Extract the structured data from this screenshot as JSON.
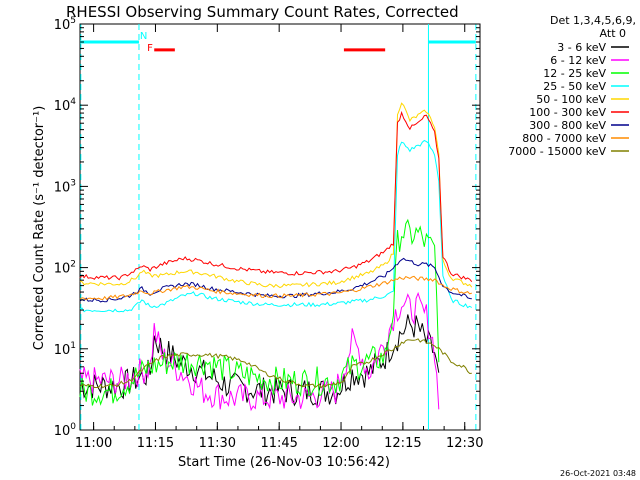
{
  "chart_data": {
    "type": "line",
    "title": "RHESSI Observing Summary Count Rates, Corrected",
    "xlabel": "Start Time (26-Nov-03 10:56:42)",
    "ylabel": "Corrected Count Rate (s⁻¹ detector⁻¹)",
    "footer": "26-Oct-2021 03:48",
    "x_unit": "minutes after 10:56:42",
    "xlim": [
      0,
      97
    ],
    "ylim": [
      1,
      100000
    ],
    "yscale": "log",
    "x_ticks": [
      {
        "x": 3.3,
        "label": "11:00"
      },
      {
        "x": 18.3,
        "label": "11:15"
      },
      {
        "x": 33.3,
        "label": "11:30"
      },
      {
        "x": 48.3,
        "label": "11:45"
      },
      {
        "x": 63.3,
        "label": "12:00"
      },
      {
        "x": 78.3,
        "label": "12:15"
      },
      {
        "x": 93.3,
        "label": "12:30"
      }
    ],
    "y_ticks": [
      {
        "v": 1,
        "base": "10",
        "exp": "0"
      },
      {
        "v": 10,
        "base": "10",
        "exp": "1"
      },
      {
        "v": 100,
        "base": "10",
        "exp": "2"
      },
      {
        "v": 1000,
        "base": "10",
        "exp": "3"
      },
      {
        "v": 10000,
        "base": "10",
        "exp": "4"
      },
      {
        "v": 100000,
        "base": "10",
        "exp": "5"
      }
    ],
    "legend_header": [
      "Det 1,3,4,5,6,9,",
      "Att 0"
    ],
    "series": [
      {
        "name": "3 - 6 keV",
        "color": "#000000",
        "points": [
          [
            0,
            3.5
          ],
          [
            10,
            3.5
          ],
          [
            17,
            5
          ],
          [
            18,
            14
          ],
          [
            20,
            10
          ],
          [
            24,
            7
          ],
          [
            30,
            5
          ],
          [
            36,
            3.5
          ],
          [
            45,
            3
          ],
          [
            55,
            3
          ],
          [
            62,
            3
          ],
          [
            66,
            5
          ],
          [
            70,
            5
          ],
          [
            74,
            8
          ],
          [
            76,
            12
          ],
          [
            78,
            16
          ],
          [
            80,
            20
          ],
          [
            82,
            18
          ],
          [
            84,
            12
          ],
          [
            86,
            9
          ],
          [
            87,
            4
          ]
        ]
      },
      {
        "name": "6 - 12 keV",
        "color": "#ff00ff",
        "points": [
          [
            0,
            4
          ],
          [
            10,
            4
          ],
          [
            17,
            6
          ],
          [
            18,
            17
          ],
          [
            20,
            8
          ],
          [
            25,
            5
          ],
          [
            30,
            3
          ],
          [
            36,
            2.5
          ],
          [
            45,
            2.5
          ],
          [
            55,
            2.5
          ],
          [
            62,
            3
          ],
          [
            66,
            12
          ],
          [
            68,
            9
          ],
          [
            70,
            5
          ],
          [
            72,
            8
          ],
          [
            74,
            12
          ],
          [
            76,
            25
          ],
          [
            78,
            38
          ],
          [
            80,
            30
          ],
          [
            82,
            32
          ],
          [
            84,
            25
          ],
          [
            86,
            10
          ],
          [
            87,
            2
          ]
        ]
      },
      {
        "name": "12 - 25 keV",
        "color": "#00ff00",
        "points": [
          [
            0,
            3
          ],
          [
            8,
            3
          ],
          [
            12,
            4
          ],
          [
            17,
            6
          ],
          [
            22,
            7
          ],
          [
            30,
            7
          ],
          [
            38,
            5
          ],
          [
            48,
            4
          ],
          [
            56,
            4
          ],
          [
            62,
            4
          ],
          [
            66,
            6
          ],
          [
            70,
            7
          ],
          [
            74,
            8
          ],
          [
            76,
            30
          ],
          [
            77,
            200
          ],
          [
            78,
            280
          ],
          [
            80,
            250
          ],
          [
            82,
            260
          ],
          [
            84,
            200
          ],
          [
            86,
            160
          ],
          [
            87,
            10
          ]
        ]
      },
      {
        "name": "25 - 50 keV",
        "color": "#00ffff",
        "points": [
          [
            0,
            30
          ],
          [
            6,
            30
          ],
          [
            10,
            30
          ],
          [
            12,
            30
          ],
          [
            14,
            35
          ],
          [
            15,
            40
          ],
          [
            17,
            33
          ],
          [
            20,
            35
          ],
          [
            25,
            45
          ],
          [
            28,
            48
          ],
          [
            32,
            42
          ],
          [
            38,
            38
          ],
          [
            45,
            35
          ],
          [
            52,
            35
          ],
          [
            58,
            35
          ],
          [
            62,
            36
          ],
          [
            66,
            38
          ],
          [
            70,
            40
          ],
          [
            74,
            45
          ],
          [
            76,
            50
          ],
          [
            77,
            2500
          ],
          [
            78,
            3500
          ],
          [
            80,
            2800
          ],
          [
            82,
            3200
          ],
          [
            84,
            3600
          ],
          [
            86,
            2500
          ],
          [
            87,
            1200
          ],
          [
            88,
            80
          ],
          [
            90,
            40
          ],
          [
            93,
            35
          ],
          [
            95,
            33
          ]
        ]
      },
      {
        "name": "50 - 100 keV",
        "color": "#ffd700",
        "points": [
          [
            0,
            65
          ],
          [
            6,
            63
          ],
          [
            10,
            63
          ],
          [
            12,
            68
          ],
          [
            14,
            78
          ],
          [
            15,
            90
          ],
          [
            17,
            80
          ],
          [
            20,
            80
          ],
          [
            25,
            90
          ],
          [
            28,
            88
          ],
          [
            32,
            80
          ],
          [
            38,
            68
          ],
          [
            45,
            60
          ],
          [
            52,
            60
          ],
          [
            58,
            63
          ],
          [
            62,
            65
          ],
          [
            66,
            75
          ],
          [
            70,
            85
          ],
          [
            74,
            110
          ],
          [
            76,
            150
          ],
          [
            77,
            8000
          ],
          [
            78,
            11000
          ],
          [
            80,
            6500
          ],
          [
            82,
            7500
          ],
          [
            84,
            8500
          ],
          [
            86,
            5500
          ],
          [
            87,
            2500
          ],
          [
            88,
            120
          ],
          [
            90,
            75
          ],
          [
            93,
            65
          ],
          [
            95,
            60
          ]
        ]
      },
      {
        "name": "100 - 300 keV",
        "color": "#ff0000",
        "points": [
          [
            0,
            78
          ],
          [
            6,
            75
          ],
          [
            10,
            75
          ],
          [
            12,
            85
          ],
          [
            14,
            95
          ],
          [
            15,
            105
          ],
          [
            17,
            95
          ],
          [
            20,
            110
          ],
          [
            25,
            130
          ],
          [
            28,
            125
          ],
          [
            32,
            112
          ],
          [
            38,
            98
          ],
          [
            45,
            88
          ],
          [
            52,
            85
          ],
          [
            58,
            88
          ],
          [
            62,
            90
          ],
          [
            66,
            100
          ],
          [
            70,
            120
          ],
          [
            74,
            160
          ],
          [
            76,
            200
          ],
          [
            77,
            6000
          ],
          [
            78,
            8000
          ],
          [
            80,
            5200
          ],
          [
            82,
            6000
          ],
          [
            84,
            7500
          ],
          [
            86,
            4500
          ],
          [
            87,
            2200
          ],
          [
            88,
            140
          ],
          [
            90,
            85
          ],
          [
            93,
            75
          ],
          [
            95,
            70
          ]
        ]
      },
      {
        "name": "300 - 800 keV",
        "color": "#00008b",
        "points": [
          [
            0,
            40
          ],
          [
            6,
            40
          ],
          [
            10,
            42
          ],
          [
            12,
            45
          ],
          [
            15,
            55
          ],
          [
            17,
            48
          ],
          [
            20,
            55
          ],
          [
            25,
            63
          ],
          [
            28,
            62
          ],
          [
            32,
            55
          ],
          [
            38,
            50
          ],
          [
            45,
            45
          ],
          [
            52,
            45
          ],
          [
            58,
            48
          ],
          [
            62,
            50
          ],
          [
            66,
            55
          ],
          [
            70,
            65
          ],
          [
            74,
            80
          ],
          [
            76,
            100
          ],
          [
            78,
            130
          ],
          [
            80,
            120
          ],
          [
            82,
            110
          ],
          [
            84,
            110
          ],
          [
            86,
            100
          ],
          [
            88,
            60
          ],
          [
            90,
            50
          ],
          [
            93,
            45
          ],
          [
            95,
            40
          ]
        ]
      },
      {
        "name": "800 - 7000 keV",
        "color": "#ff8c00",
        "points": [
          [
            0,
            42
          ],
          [
            6,
            42
          ],
          [
            10,
            44
          ],
          [
            12,
            46
          ],
          [
            15,
            52
          ],
          [
            17,
            48
          ],
          [
            20,
            52
          ],
          [
            25,
            58
          ],
          [
            28,
            57
          ],
          [
            32,
            52
          ],
          [
            38,
            48
          ],
          [
            45,
            45
          ],
          [
            52,
            45
          ],
          [
            58,
            47
          ],
          [
            62,
            48
          ],
          [
            66,
            52
          ],
          [
            70,
            58
          ],
          [
            74,
            65
          ],
          [
            76,
            70
          ],
          [
            78,
            75
          ],
          [
            80,
            75
          ],
          [
            82,
            73
          ],
          [
            84,
            72
          ],
          [
            86,
            72
          ],
          [
            88,
            60
          ],
          [
            90,
            55
          ],
          [
            93,
            50
          ],
          [
            95,
            48
          ]
        ]
      },
      {
        "name": "7000 - 15000 keV",
        "color": "#808000",
        "points": [
          [
            0,
            3.5
          ],
          [
            8,
            3.5
          ],
          [
            12,
            4
          ],
          [
            16,
            6
          ],
          [
            20,
            8
          ],
          [
            25,
            8.5
          ],
          [
            30,
            8.5
          ],
          [
            35,
            8
          ],
          [
            40,
            7
          ],
          [
            45,
            5
          ],
          [
            50,
            4
          ],
          [
            55,
            3.5
          ],
          [
            60,
            3.5
          ],
          [
            64,
            4
          ],
          [
            66,
            6
          ],
          [
            70,
            7
          ],
          [
            74,
            9
          ],
          [
            76,
            10
          ],
          [
            78,
            12
          ],
          [
            80,
            13
          ],
          [
            82,
            13
          ],
          [
            84,
            12
          ],
          [
            86,
            11
          ],
          [
            88,
            9
          ],
          [
            90,
            7
          ],
          [
            93,
            6
          ],
          [
            95,
            5
          ]
        ]
      }
    ],
    "attenuator_markers": [
      {
        "label": "N",
        "color": "#00ffff",
        "x": 15.5
      },
      {
        "label": "F",
        "color": "#ff0000",
        "x": 15.8
      }
    ],
    "state_bars": [
      {
        "color": "#00ffff",
        "x0": 0,
        "x1": 14.3,
        "y": 60000
      },
      {
        "color": "#00ffff",
        "x0": 84.5,
        "x1": 96,
        "y": 60000
      },
      {
        "color": "#ff0000",
        "x0": 18,
        "x1": 23,
        "y": 48000
      },
      {
        "color": "#ff0000",
        "x0": 64,
        "x1": 74,
        "y": 48000
      }
    ],
    "vlines": [
      {
        "x": 14.3,
        "color": "#00ffff",
        "style": "dashed"
      },
      {
        "x": 84.5,
        "color": "#00ffff",
        "style": "solid"
      },
      {
        "x": 96,
        "color": "#00ffff",
        "style": "dashed"
      },
      {
        "x": 0.2,
        "color": "#00ffff",
        "style": "dashed"
      }
    ]
  }
}
